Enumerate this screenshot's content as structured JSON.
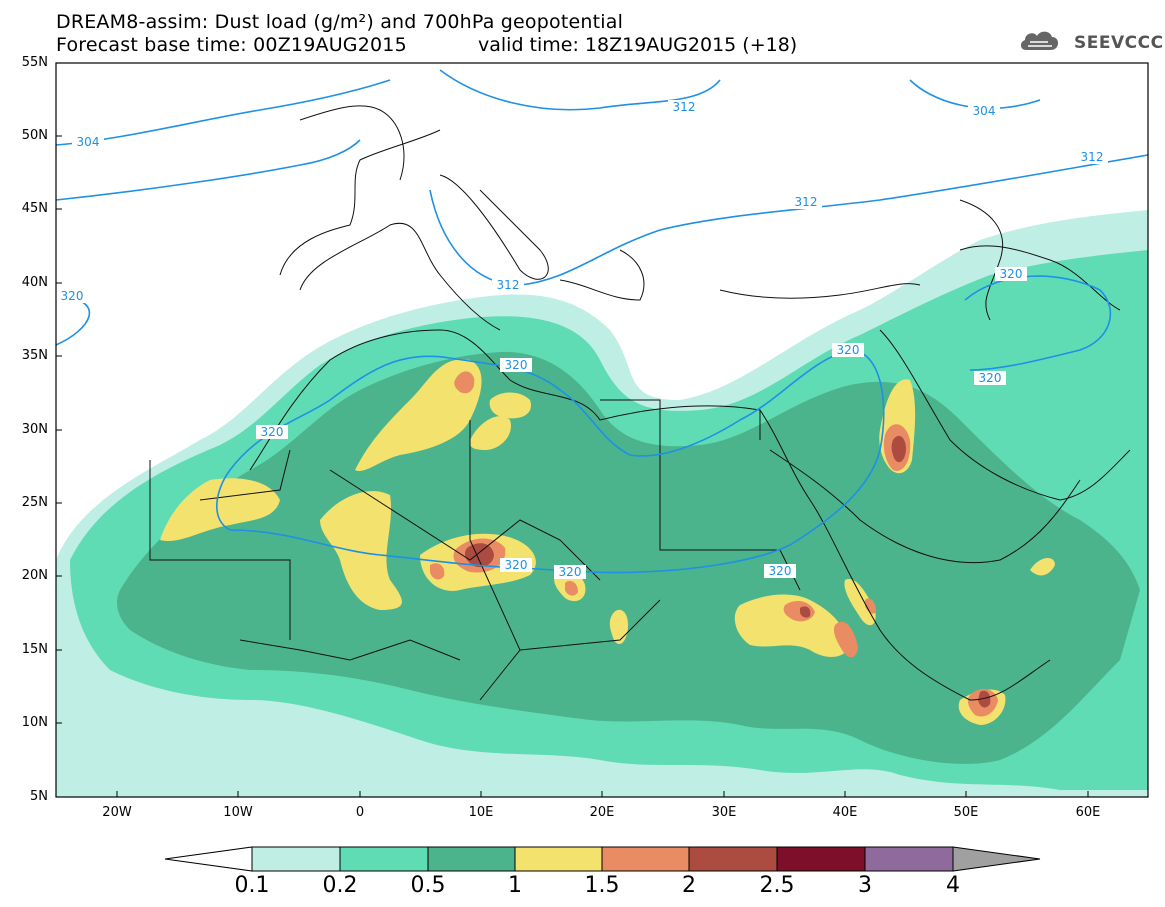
{
  "title": {
    "line1": "DREAM8-assim: Dust load (g/m²) and 700hPa geopotential",
    "line2_left": "Forecast base time: 00Z19AUG2015",
    "line2_right": "valid time: 18Z19AUG2015 (+18)"
  },
  "logo": {
    "text": "SEEVCCC",
    "icon": "cloud-icon"
  },
  "axes": {
    "lat_labels": [
      "55N",
      "50N",
      "45N",
      "40N",
      "35N",
      "30N",
      "25N",
      "20N",
      "15N",
      "10N",
      "5N"
    ],
    "lon_labels": [
      "20W",
      "10W",
      "0",
      "10E",
      "20E",
      "30E",
      "40E",
      "50E",
      "60E"
    ]
  },
  "contour_labels": [
    "304",
    "312",
    "304",
    "312",
    "312",
    "312",
    "320",
    "320",
    "320",
    "320",
    "320",
    "320",
    "320",
    "320",
    "320"
  ],
  "colorbar": {
    "labels": [
      "0.1",
      "0.2",
      "0.5",
      "1",
      "1.5",
      "2",
      "2.5",
      "3",
      "4"
    ],
    "colors": [
      "#bfeee5",
      "#5fdcb4",
      "#4cb48c",
      "#f3e26e",
      "#e98c64",
      "#ac4b40",
      "#7d0f2a",
      "#8f6a9c",
      "#a0a0a0"
    ]
  }
}
